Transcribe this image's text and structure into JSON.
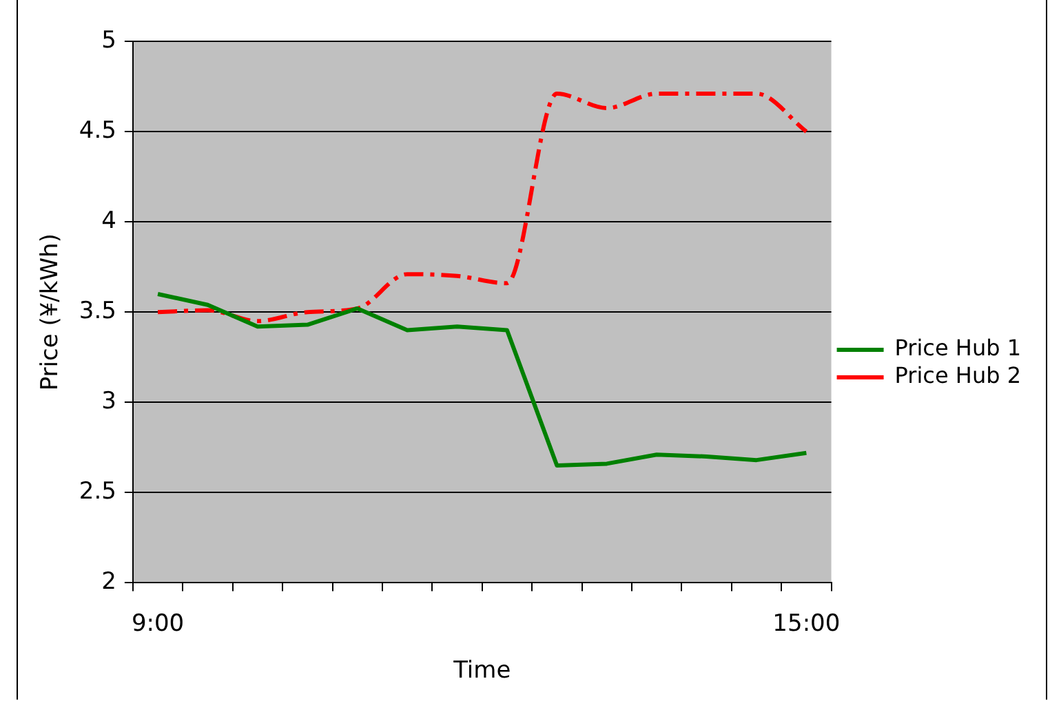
{
  "chart_data": {
    "type": "line",
    "xlabel": "Time",
    "ylabel": "Price (¥/kWh)",
    "categories": [
      "9:00",
      null,
      null,
      null,
      null,
      null,
      null,
      null,
      null,
      null,
      null,
      null,
      null,
      "15:00"
    ],
    "series": [
      {
        "name": "Price Hub 1",
        "color": "#008000",
        "line_style": "solid",
        "values": [
          3.6,
          3.54,
          3.42,
          3.43,
          3.52,
          3.4,
          3.42,
          3.4,
          2.65,
          2.66,
          2.71,
          2.7,
          2.68,
          2.72
        ]
      },
      {
        "name": "Price Hub 2",
        "color": "#ff0000",
        "line_style": "dashed",
        "values": [
          3.5,
          3.51,
          3.45,
          3.5,
          3.52,
          3.71,
          3.7,
          3.66,
          4.71,
          4.63,
          4.71,
          4.71,
          4.71,
          4.5
        ]
      }
    ],
    "ylim": [
      2,
      5
    ],
    "yticks": [
      2,
      2.5,
      3,
      3.5,
      4,
      4.5,
      5
    ],
    "grid": "y",
    "legend": "right",
    "marker": "none"
  }
}
